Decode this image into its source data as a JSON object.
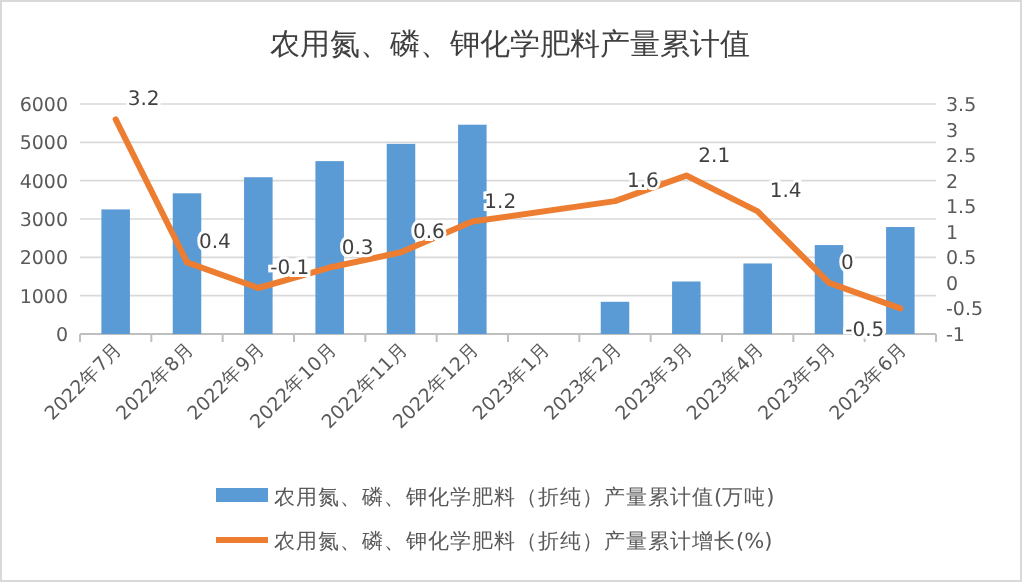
{
  "chart_data": {
    "type": "bar",
    "title": "农用氮、磷、钾化学肥料产量累计值",
    "categories": [
      "2022年7月",
      "2022年8月",
      "2022年9月",
      "2022年10月",
      "2022年11月",
      "2022年12月",
      "2023年1月",
      "2023年2月",
      "2023年3月",
      "2023年4月",
      "2023年5月",
      "2023年6月"
    ],
    "series": [
      {
        "name": "农用氮、磷、钾化学肥料（折纯）产量累计值(万吨)",
        "color": "#5b9bd5",
        "values": [
          3250,
          3670,
          4090,
          4510,
          4960,
          5460,
          null,
          840,
          1370,
          1840,
          2320,
          2790
        ]
      },
      {
        "name": "农用氮、磷、钾化学肥料（折纯）产量累计增长(%)",
        "type": "line",
        "axis": "y2",
        "color": "#ed7d31",
        "data_labels": true,
        "values": [
          3.2,
          0.4,
          -0.1,
          0.3,
          0.6,
          1.2,
          null,
          1.6,
          2.1,
          1.4,
          0,
          -0.5
        ]
      }
    ],
    "ylim": [
      0,
      6000
    ],
    "yticks": [
      0,
      1000,
      2000,
      3000,
      4000,
      5000,
      6000
    ],
    "y2lim": [
      -1,
      3.5
    ],
    "y2ticks": [
      -1,
      -0.5,
      0,
      0.5,
      1,
      1.5,
      2,
      2.5,
      3,
      3.5
    ],
    "grid": "y",
    "legend": "bottom"
  }
}
